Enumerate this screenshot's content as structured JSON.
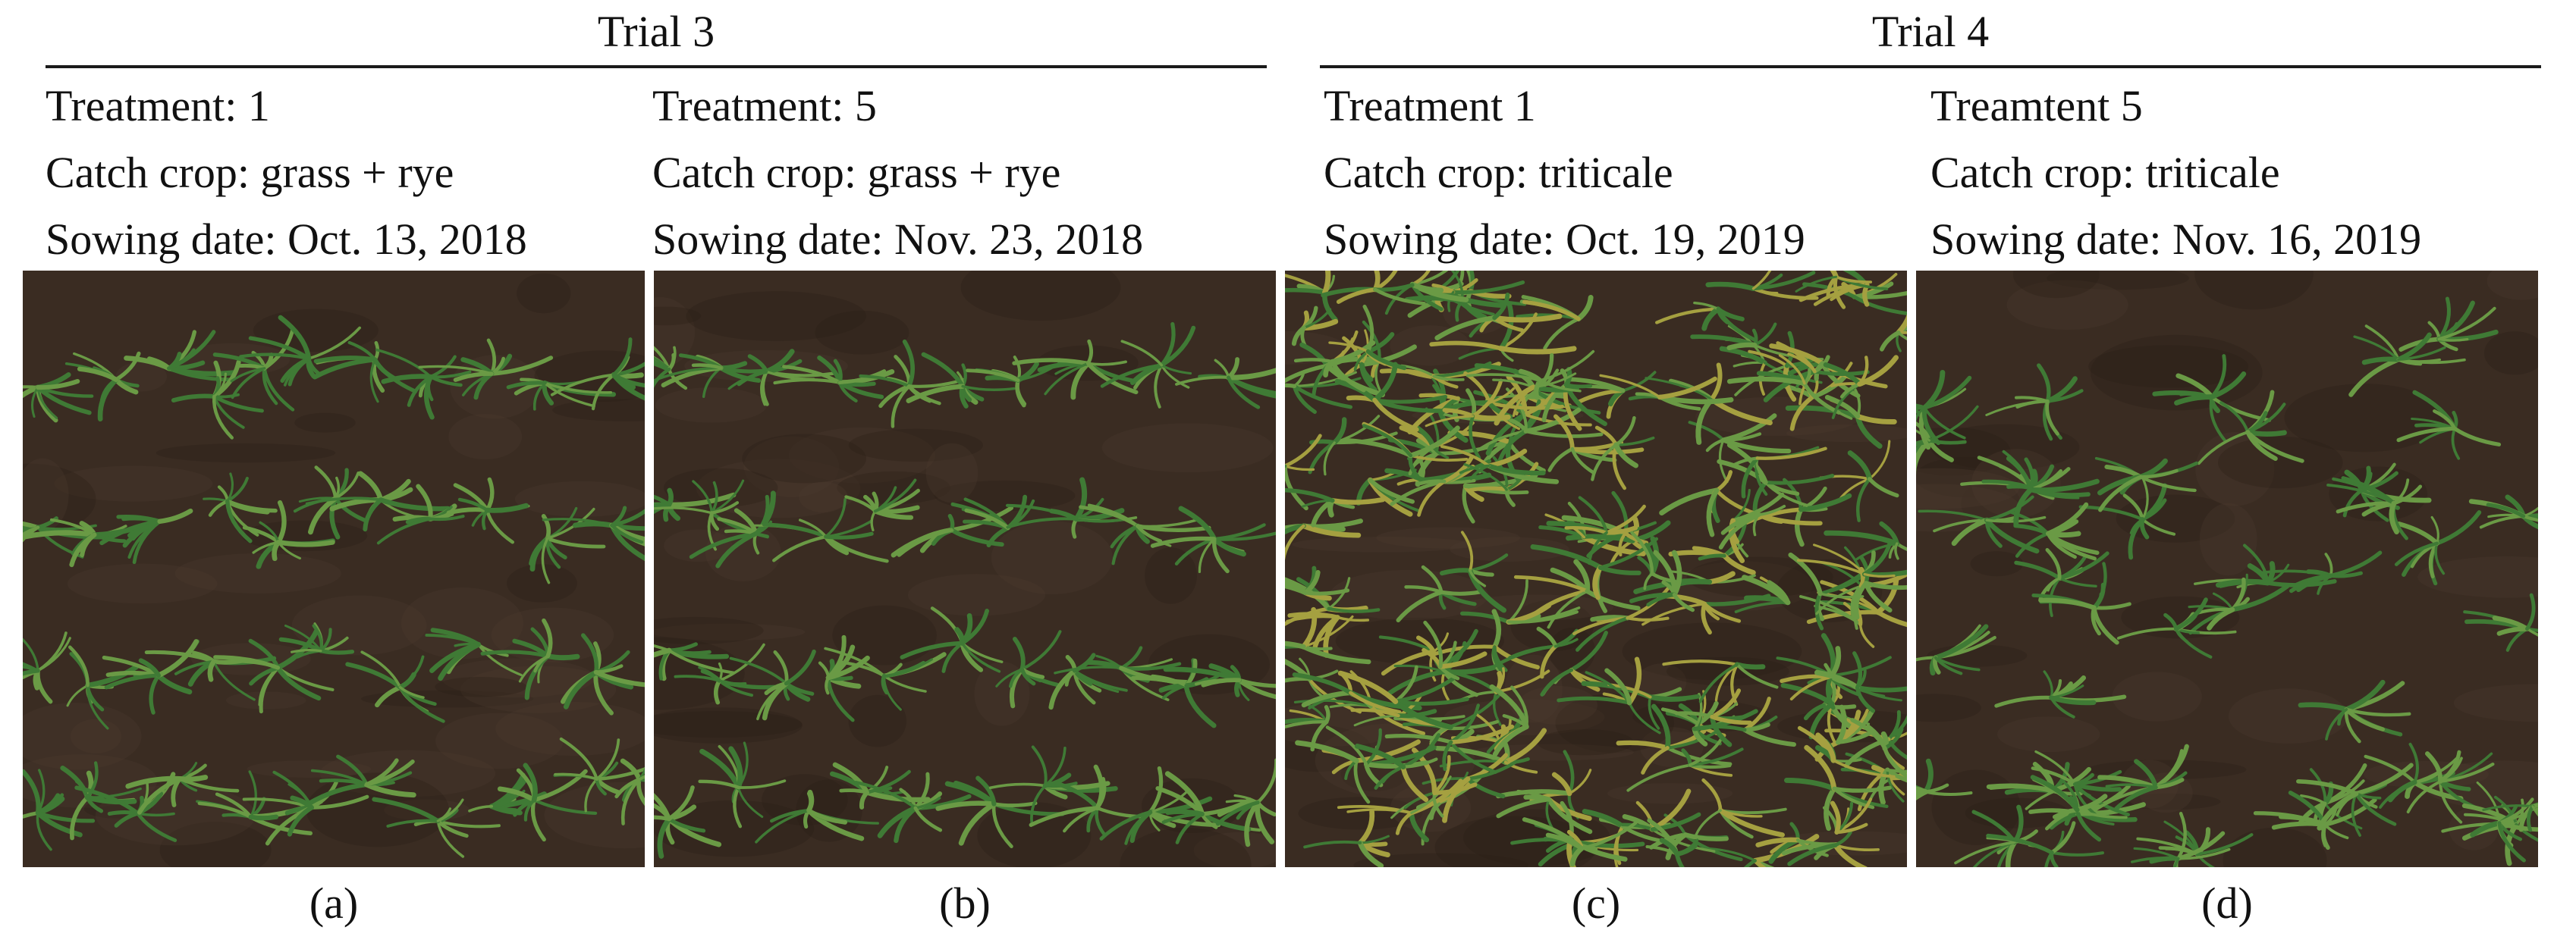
{
  "trials": [
    {
      "title": "Trial 3"
    },
    {
      "title": "Trial 4"
    }
  ],
  "panels": [
    {
      "treatment": "Treatment: 1",
      "catch_crop": "Catch crop: grass + rye",
      "sowing_date": "Sowing date: Oct. 13, 2018",
      "caption": "(a)"
    },
    {
      "treatment": "Treatment: 5",
      "catch_crop": "Catch crop: grass + rye",
      "sowing_date": "Sowing date: Nov. 23, 2018",
      "caption": "(b)"
    },
    {
      "treatment": "Treatment 1",
      "catch_crop": "Catch crop: triticale",
      "sowing_date": "Sowing date: Oct. 19, 2019",
      "caption": "(c)"
    },
    {
      "treatment": "Treamtent 5",
      "catch_crop": "Catch crop: triticale",
      "sowing_date": "Sowing date: Nov. 16, 2019",
      "caption": "(d)"
    }
  ],
  "colors": {
    "soil": "#3a2c22",
    "soil_dark": "#2a1f18",
    "grass": "#3f7a35",
    "grass_light": "#6a9a45",
    "grass_yellow": "#a5a040"
  }
}
